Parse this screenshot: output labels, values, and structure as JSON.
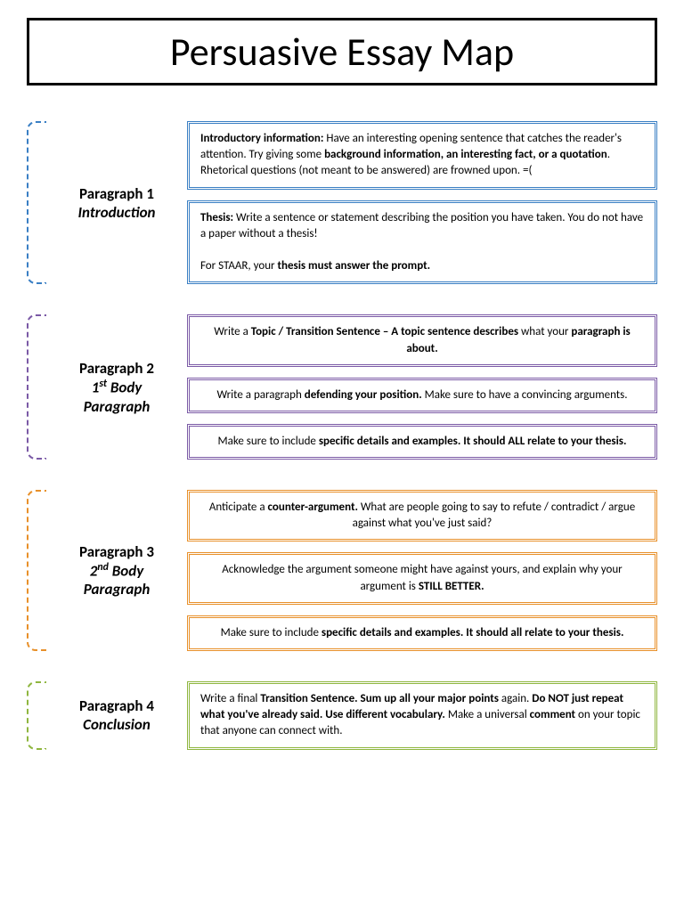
{
  "title": "Persuasive Essay Map",
  "colors": {
    "blue": "#3a7fc4",
    "purple": "#7b5aa6",
    "orange": "#e8902a",
    "green": "#8fb63f",
    "black": "#000000"
  },
  "sections": [
    {
      "id": "para1",
      "color_key": "blue",
      "label_title": "Paragraph 1",
      "label_sub": "Introduction",
      "boxes": [
        {
          "align": "left",
          "html": "<b>Introductory information:</b> Have an interesting opening sentence that catches the reader's attention. Try giving some <b>background information, an interesting fact, or a quotation</b>. Rhetorical questions (not meant to be answered) are frowned upon. =("
        },
        {
          "align": "left",
          "html": "<b>Thesis:</b> Write a sentence or statement describing the position you have taken. You do not have a paper without a thesis!<br><br>For STAAR, your <b>thesis must answer the prompt.</b>"
        }
      ]
    },
    {
      "id": "para2",
      "color_key": "purple",
      "label_title": "Paragraph 2",
      "label_sub_html": "1<span class='sup'>st</span> Body Paragraph",
      "boxes": [
        {
          "align": "center",
          "html": "Write a <b>Topic / Transition Sentence – A topic sentence describes</b> what your <b>paragraph is about.</b>"
        },
        {
          "align": "center",
          "html": "Write a paragraph <b>defending your position.</b> Make sure to have a convincing arguments."
        },
        {
          "align": "center",
          "html": "Make sure to include <b>specific details and examples. It should ALL relate to your thesis.</b>"
        }
      ]
    },
    {
      "id": "para3",
      "color_key": "orange",
      "label_title": "Paragraph 3",
      "label_sub_html": "2<span class='sup'>nd</span> Body Paragraph",
      "boxes": [
        {
          "align": "center",
          "html": "Anticipate a <b>counter-argument.</b> What are people going to say to refute / contradict / argue against what you've just said?"
        },
        {
          "align": "center",
          "html": "Acknowledge the argument someone might have against yours, and explain why your argument is <b>STILL BETTER.</b>"
        },
        {
          "align": "center",
          "html": "Make sure to include <b>specific details and examples. It should all relate to your thesis.</b>"
        }
      ]
    },
    {
      "id": "para4",
      "color_key": "green",
      "label_title": "Paragraph 4",
      "label_sub": "Conclusion",
      "boxes": [
        {
          "align": "left",
          "html": "Write a final <b>Transition Sentence. Sum up all your major points</b> again. <b>Do NOT just repeat what you've already said. Use different vocabulary.</b> Make a universal <b>comment</b> on your topic that anyone can connect with."
        }
      ]
    }
  ]
}
